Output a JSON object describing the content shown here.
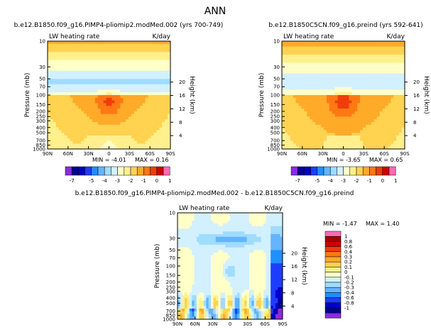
{
  "page_title": "ANN",
  "chart_data": [
    {
      "type": "heatmap",
      "id": "left",
      "title": "b.e12.B1850.f09_g16.PIMP4-pliomip2.modMed.002 (yrs 700-749)",
      "subtitle_left": "LW heating rate",
      "subtitle_right": "K/day",
      "ylabel": "Pressure (mb)",
      "ylabel_right": "Height (km)",
      "x_ticks": [
        "90N",
        "60N",
        "30N",
        "0",
        "30S",
        "60S",
        "90S"
      ],
      "y_ticks": [
        "1000",
        "850",
        "700",
        "500",
        "400",
        "300",
        "250",
        "200",
        "150",
        "100",
        "70",
        "50",
        "30",
        "10"
      ],
      "height_ticks": [
        "20",
        "16",
        "12",
        "8",
        "4"
      ],
      "min_label": "MIN = -4.01",
      "max_label": "MAX = 0.16",
      "min": -4.01,
      "max": 0.16
    },
    {
      "type": "heatmap",
      "id": "right",
      "title": "b.e12.B1850C5CN.f09_g16.preind (yrs 592-641)",
      "subtitle_left": "LW heating rate",
      "subtitle_right": "K/day",
      "ylabel": "Pressure (mb)",
      "ylabel_right": "Height (km)",
      "x_ticks": [
        "90N",
        "60N",
        "30N",
        "0",
        "30S",
        "60S",
        "90S"
      ],
      "y_ticks": [
        "1000",
        "850",
        "700",
        "500",
        "400",
        "300",
        "250",
        "200",
        "150",
        "100",
        "70",
        "50",
        "30",
        "10"
      ],
      "height_ticks": [
        "20",
        "16",
        "12",
        "8",
        "4"
      ],
      "min_label": "MIN = -3.65",
      "max_label": "MAX = 0.65",
      "min": -3.65,
      "max": 0.65
    },
    {
      "type": "heatmap",
      "id": "diff",
      "title": "b.e12.B1850.f09_g16.PIMP4-pliomip2.modMed.002 - b.e12.B1850C5CN.f09_g16.preind",
      "subtitle_left": "LW heating rate",
      "subtitle_right": "K/day",
      "ylabel": "Pressure (mb)",
      "ylabel_right": "Height (km)",
      "x_ticks": [
        "90N",
        "60N",
        "30N",
        "0",
        "30S",
        "60S",
        "90S"
      ],
      "y_ticks": [
        "1000",
        "850",
        "700",
        "500",
        "400",
        "300",
        "250",
        "200",
        "150",
        "100",
        "70",
        "50",
        "30",
        "10"
      ],
      "height_ticks": [
        "20",
        "16",
        "12",
        "8",
        "4"
      ],
      "min_label": "MIN = -1.47",
      "max_label": "MAX = 1.40",
      "min": -1.47,
      "max": 1.4
    }
  ],
  "colorbar_top": {
    "labels": [
      "-7",
      "-5",
      "-4",
      "-3",
      "-2",
      "-1",
      "0",
      "1"
    ],
    "colors": [
      "#8a2be2",
      "#000090",
      "#0000c8",
      "#1e3cff",
      "#1e90ff",
      "#64b4ff",
      "#a0dcff",
      "#d2f0ff",
      "#ffffc8",
      "#fff08c",
      "#ffd250",
      "#ffaa28",
      "#ff7814",
      "#f03c0a",
      "#d20000",
      "#ff69b4"
    ]
  },
  "colorbar_diff": {
    "labels": [
      "1",
      "0.8",
      "0.6",
      "0.4",
      "0.3",
      "0.2",
      "0.1",
      "0",
      "-0.1",
      "-0.2",
      "-0.3",
      "-0.4",
      "-0.6",
      "-0.8",
      "-1"
    ],
    "colors": [
      "#ff69b4",
      "#a00000",
      "#d20000",
      "#f03c0a",
      "#ff7814",
      "#ffaa28",
      "#ffd250",
      "#fff08c",
      "#ffffc8",
      "#d2f0ff",
      "#a0dcff",
      "#64b4ff",
      "#1e90ff",
      "#1e3cff",
      "#0000c8",
      "#000090",
      "#8a2be2"
    ]
  }
}
